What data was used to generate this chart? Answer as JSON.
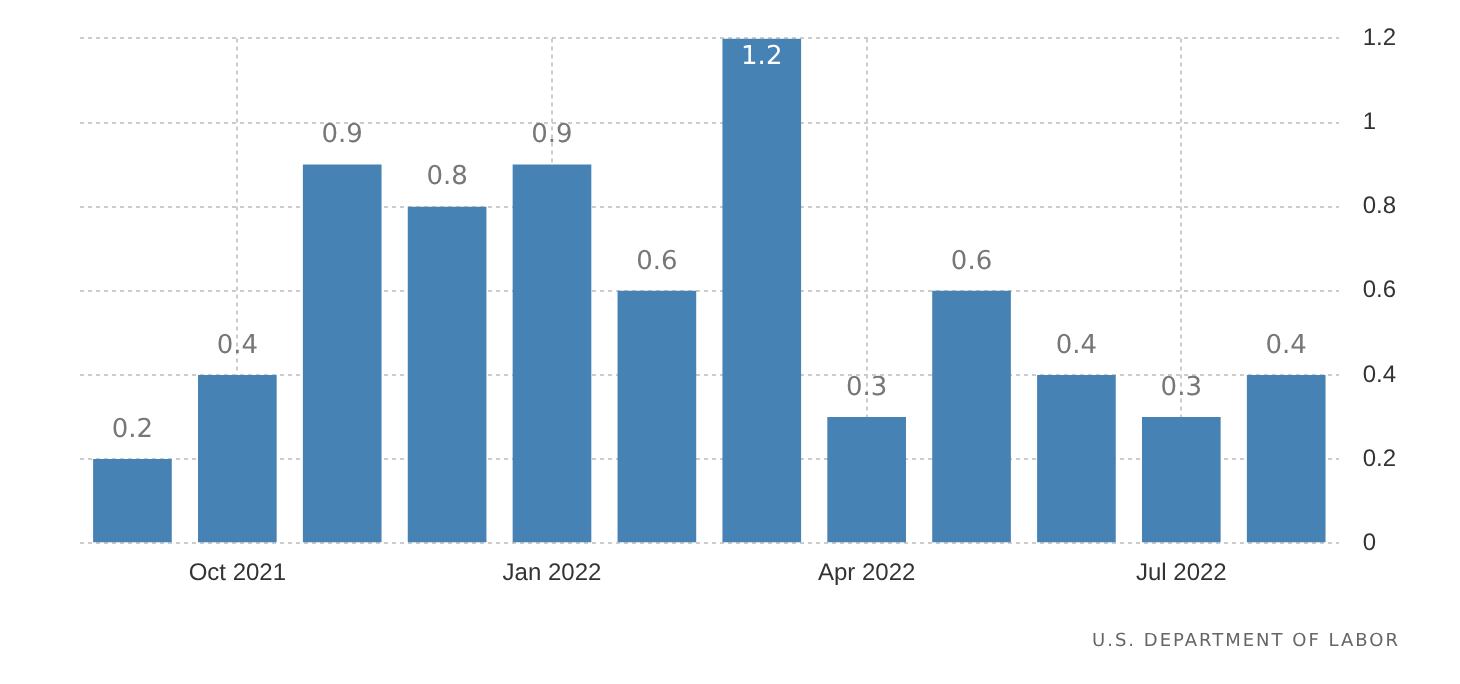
{
  "chart_data": {
    "type": "bar",
    "categories": [
      null,
      "Oct 2021",
      null,
      null,
      "Jan 2022",
      null,
      null,
      "Apr 2022",
      null,
      null,
      "Jul 2022",
      null
    ],
    "values": [
      0.2,
      0.4,
      0.9,
      0.8,
      0.9,
      0.6,
      1.2,
      0.3,
      0.6,
      0.4,
      0.3,
      0.4
    ],
    "color": "#4682b4",
    "ylim": [
      0,
      1.2
    ],
    "yticks": [
      0,
      0.2,
      0.4,
      0.6,
      0.8,
      1,
      1.2
    ],
    "grid": true,
    "data_labels": true,
    "annotations": [
      "U.S. DEPARTMENT OF LABOR"
    ]
  }
}
